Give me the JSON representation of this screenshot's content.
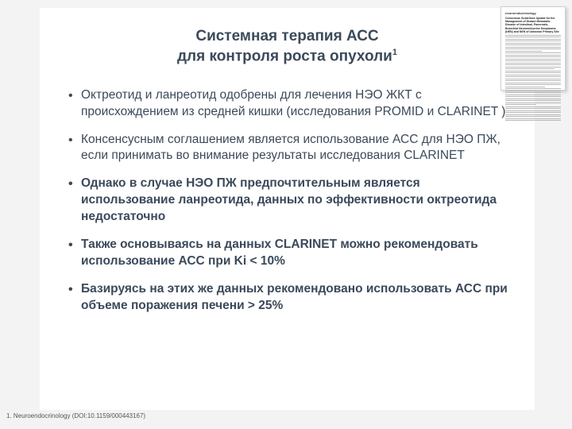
{
  "colors": {
    "page_bg": "#f3f3f3",
    "content_bg": "#ffffff",
    "text": "#3b4a5a",
    "footnote": "#555555"
  },
  "title": {
    "line1": "Системная терапия  АСС",
    "line2": "для контроля роста опухоли",
    "sup": "1"
  },
  "bullets": [
    {
      "text": "Октреотид и ланреотид одобрены для лечения НЭО ЖКТ с происхождением из средней кишки (исследования PROMID и CLARINET )",
      "bold": false
    },
    {
      "text": "Консенсусным соглашением является использование АСС для НЭО ПЖ, если принимать во внимание результаты исследования CLARINET",
      "bold": false
    },
    {
      "text": "Однако в случае НЭО ПЖ предпочтительным является использование ланреотида, данных по эффективности октреотида недостаточно",
      "bold": true
    },
    {
      "text": "Также основываясь на данных CLARINET можно рекомендовать использование АСС при Ki < 10%",
      "bold": true
    },
    {
      "text": "Базируясь на этих же данных рекомендовано использовать АСС при объеме поражения печени > 25%",
      "bold": true
    }
  ],
  "thumbnail": {
    "journal": "neuroendocrinology",
    "lines": 44
  },
  "footnote": "1. Neuroendocrinology (DOI:10.1159/000443167)"
}
